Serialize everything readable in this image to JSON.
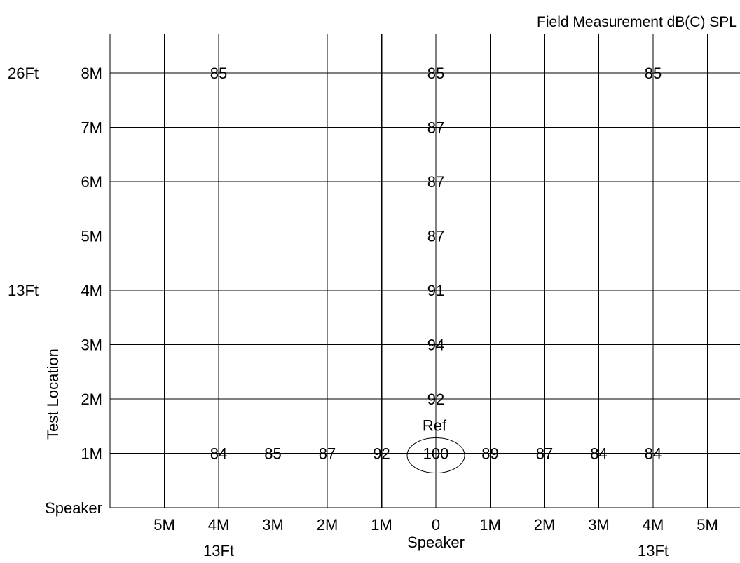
{
  "chart_data": {
    "type": "scatter",
    "title": "Field Measurement dB(C) SPL",
    "ylabel": "Test Location",
    "x_ticks": [
      "5M",
      "4M",
      "3M",
      "2M",
      "1M",
      "0",
      "1M",
      "2M",
      "3M",
      "4M",
      "5M"
    ],
    "x_subticks": [
      {
        "x": -4,
        "label": "13Ft"
      },
      {
        "x": 0,
        "label": "Speaker"
      },
      {
        "x": 4,
        "label": "13Ft"
      }
    ],
    "y_ticks": [
      {
        "y": 0,
        "label": "Speaker"
      },
      {
        "y": 1,
        "label": "1M"
      },
      {
        "y": 2,
        "label": "2M"
      },
      {
        "y": 3,
        "label": "3M"
      },
      {
        "y": 4,
        "label": "4M"
      },
      {
        "y": 5,
        "label": "5M"
      },
      {
        "y": 6,
        "label": "6M"
      },
      {
        "y": 7,
        "label": "7M"
      },
      {
        "y": 8,
        "label": "8M"
      }
    ],
    "y_subticks": [
      {
        "y": 4,
        "label": "13Ft"
      },
      {
        "y": 8,
        "label": "26Ft"
      }
    ],
    "xlim": [
      -6,
      5.4
    ],
    "ylim": [
      -0.2,
      9
    ],
    "grid": true,
    "points": [
      {
        "x": -4,
        "y": 8,
        "value": 85
      },
      {
        "x": 0,
        "y": 8,
        "value": 85
      },
      {
        "x": 4,
        "y": 8,
        "value": 85
      },
      {
        "x": 0,
        "y": 7,
        "value": 87
      },
      {
        "x": 0,
        "y": 6,
        "value": 87
      },
      {
        "x": 0,
        "y": 5,
        "value": 87
      },
      {
        "x": 0,
        "y": 4,
        "value": 91
      },
      {
        "x": 0,
        "y": 3,
        "value": 94
      },
      {
        "x": 0,
        "y": 2,
        "value": 92
      },
      {
        "x": -4,
        "y": 1,
        "value": 84
      },
      {
        "x": -3,
        "y": 1,
        "value": 85
      },
      {
        "x": -2,
        "y": 1,
        "value": 87
      },
      {
        "x": -1,
        "y": 1,
        "value": 92
      },
      {
        "x": 0,
        "y": 1,
        "value": 100
      },
      {
        "x": 1,
        "y": 1,
        "value": 89
      },
      {
        "x": 2,
        "y": 1,
        "value": 87
      },
      {
        "x": 3,
        "y": 1,
        "value": 84
      },
      {
        "x": 4,
        "y": 1,
        "value": 84
      }
    ],
    "reference": {
      "x": 0,
      "y": 1,
      "label": "Ref"
    }
  }
}
